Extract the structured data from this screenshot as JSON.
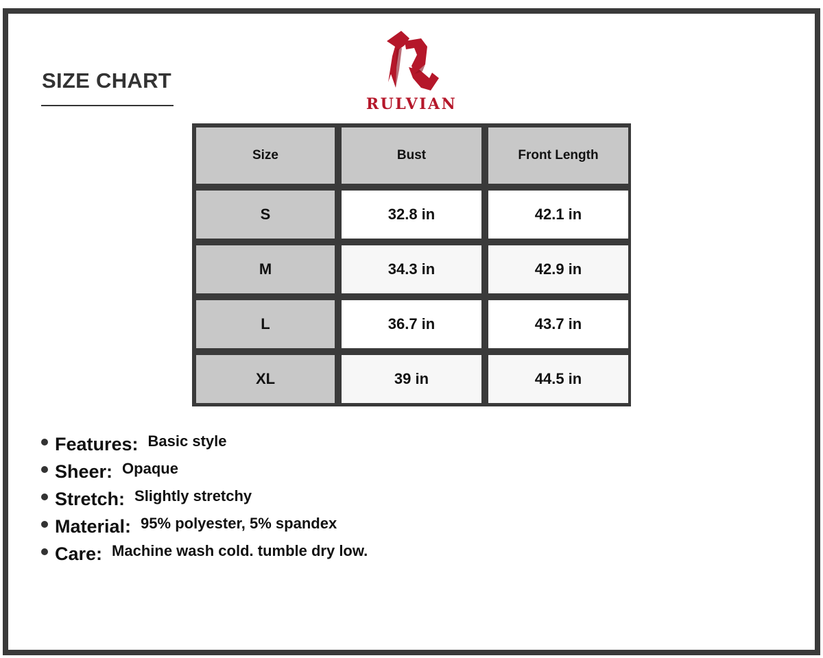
{
  "title": "SIZE CHART",
  "brand": {
    "name": "RULVIAN",
    "color": "#b5172a"
  },
  "table": {
    "headers": [
      "Size",
      "Bust",
      "Front Length"
    ],
    "rows": [
      [
        "S",
        "32.8 in",
        "42.1 in"
      ],
      [
        "M",
        "34.3 in",
        "42.9 in"
      ],
      [
        "L",
        "36.7 in",
        "43.7 in"
      ],
      [
        "XL",
        "39 in",
        "44.5 in"
      ]
    ]
  },
  "specs": [
    {
      "label": "Features:",
      "value": "Basic style"
    },
    {
      "label": "Sheer:",
      "value": "Opaque"
    },
    {
      "label": "Stretch:",
      "value": "Slightly stretchy"
    },
    {
      "label": "Material:",
      "value": "95% polyester, 5% spandex"
    },
    {
      "label": "Care:",
      "value": "Machine wash cold. tumble dry low."
    }
  ]
}
